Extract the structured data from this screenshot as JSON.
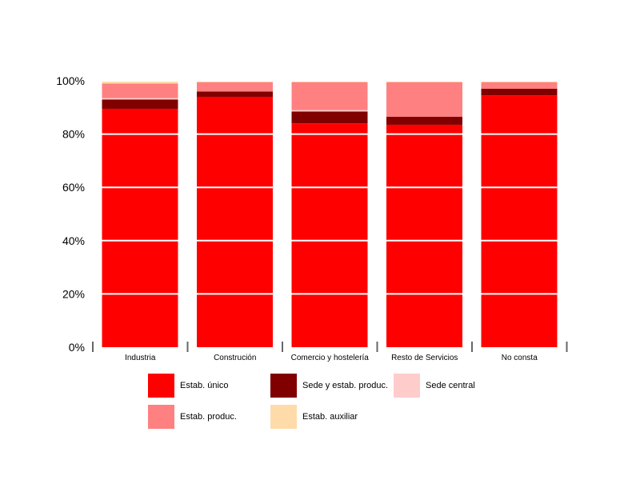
{
  "chart_data": {
    "type": "bar",
    "stacked": true,
    "percent": true,
    "categories": [
      "Industria",
      "Construción",
      "Comercio y hostelería",
      "Resto de Servicios",
      "No consta"
    ],
    "series": [
      {
        "name": "Estab. único",
        "color": "#ff0000",
        "values": [
          89.5,
          94.0,
          84.0,
          83.5,
          94.5
        ]
      },
      {
        "name": "Sede y estab. produc.",
        "color": "#800000",
        "values": [
          3.5,
          2.0,
          4.5,
          3.0,
          2.5
        ]
      },
      {
        "name": "Sede central",
        "color": "#ffcccc",
        "values": [
          0.5,
          0.0,
          0.5,
          0.0,
          0.0
        ]
      },
      {
        "name": "Estab. produc.",
        "color": "#ff8080",
        "values": [
          5.5,
          3.5,
          10.5,
          13.0,
          2.5
        ]
      },
      {
        "name": "Estab. auxiliar",
        "color": "#ffdbaa",
        "values": [
          1.0,
          0.5,
          0.5,
          0.5,
          0.5
        ]
      }
    ],
    "ylim": [
      0,
      100
    ],
    "yticks": [
      "0%",
      "20%",
      "40%",
      "60%",
      "80%",
      "100%"
    ],
    "grid": true,
    "legend_position": "bottom",
    "title": "",
    "xlabel": "",
    "ylabel": ""
  }
}
